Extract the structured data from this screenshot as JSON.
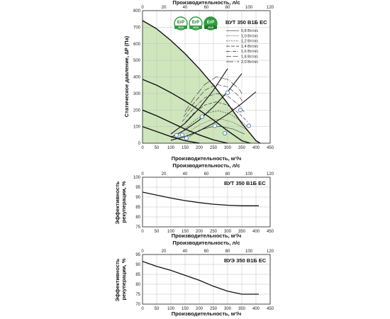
{
  "chart_data": [
    {
      "type": "line",
      "title": "ВУТ 350 В1Б ЕС",
      "xlabel": "Производительность, м³/ч",
      "x2label": "Производительность, л/с",
      "ylabel": "Статическое давление, ∆P (Па)",
      "xlim": [
        0,
        450
      ],
      "x2lim": [
        0,
        120
      ],
      "ylim": [
        0,
        800
      ],
      "x_ticks": [
        "0",
        "50",
        "100",
        "150",
        "200",
        "250",
        "300",
        "350",
        "400",
        "450"
      ],
      "x2_ticks": [
        "0",
        "20",
        "40",
        "60",
        "80",
        "100",
        "120"
      ],
      "y_ticks": [
        "0",
        "100",
        "200",
        "300",
        "400",
        "500",
        "600",
        "700",
        "800"
      ],
      "grid": true,
      "badges": [
        {
          "text": "ErP",
          "year": "2016"
        },
        {
          "text": "ErP",
          "year": "2018"
        },
        {
          "text": "ErP",
          "year": "2018"
        }
      ],
      "legend_position": "top-right",
      "legend": [
        {
          "label": "0,8 Вт/л/с",
          "dash": ""
        },
        {
          "label": "1,0 Вт/л/с",
          "dash": "1,1.2"
        },
        {
          "label": "1,2 Вт/л/с",
          "dash": "2,1.5"
        },
        {
          "label": "1,4 Вт/л/с",
          "dash": "5,2"
        },
        {
          "label": "1,6 Вт/л/с",
          "dash": "5,1.5,1,1.5"
        },
        {
          "label": "1,8 Вт/л/с",
          "dash": "7,2.5"
        },
        {
          "label": "2,0 Вт/л/с",
          "dash": "10,2,1,2"
        }
      ],
      "series": [
        {
          "role": "fan",
          "x": [
            0,
            50,
            100,
            150,
            200,
            250,
            300,
            350,
            400,
            415
          ],
          "y": [
            740,
            690,
            620,
            540,
            450,
            350,
            240,
            120,
            15,
            0
          ]
        },
        {
          "role": "fan",
          "x": [
            0,
            50,
            100,
            150,
            200,
            250,
            300,
            350,
            380
          ],
          "y": [
            385,
            350,
            305,
            255,
            200,
            140,
            75,
            15,
            0
          ]
        },
        {
          "role": "fan",
          "x": [
            0,
            50,
            100,
            150,
            200,
            250,
            300
          ],
          "y": [
            200,
            165,
            125,
            85,
            50,
            20,
            0
          ]
        },
        {
          "role": "fan",
          "x": [
            0,
            50,
            100,
            150,
            200
          ],
          "y": [
            100,
            70,
            40,
            15,
            0
          ]
        },
        {
          "role": "system",
          "x": [
            100,
            150,
            200,
            250,
            300,
            350,
            400
          ],
          "y": [
            18,
            40,
            75,
            120,
            175,
            240,
            310
          ]
        },
        {
          "role": "system",
          "x": [
            100,
            150,
            200,
            250,
            300,
            350
          ],
          "y": [
            35,
            80,
            140,
            220,
            310,
            420
          ]
        },
        {
          "role": "system",
          "x": [
            100,
            150,
            200,
            250,
            300
          ],
          "y": [
            55,
            120,
            210,
            320,
            450
          ]
        },
        {
          "role": "spfp",
          "dash": "",
          "x": [
            165,
            200,
            240,
            280,
            320,
            360
          ],
          "y": [
            40,
            78,
            98,
            100,
            85,
            55
          ]
        },
        {
          "role": "spfp",
          "dash": "1,1.2",
          "x": [
            155,
            200,
            240,
            280,
            320,
            360,
            380
          ],
          "y": [
            58,
            110,
            140,
            145,
            125,
            90,
            60
          ]
        },
        {
          "role": "spfp",
          "dash": "2,1.5",
          "x": [
            145,
            190,
            230,
            270,
            310,
            350,
            375
          ],
          "y": [
            80,
            145,
            185,
            195,
            175,
            130,
            90
          ]
        },
        {
          "role": "spfp",
          "dash": "5,2",
          "x": [
            140,
            180,
            220,
            260,
            300,
            340,
            370
          ],
          "y": [
            105,
            180,
            230,
            250,
            230,
            180,
            130
          ]
        },
        {
          "role": "spfp",
          "dash": "5,1.5,1,1.5",
          "x": [
            140,
            180,
            220,
            260,
            300,
            340,
            360
          ],
          "y": [
            130,
            210,
            275,
            300,
            285,
            230,
            185
          ]
        },
        {
          "role": "spfp",
          "dash": "7,2.5",
          "x": [
            145,
            180,
            220,
            260,
            300,
            340,
            355
          ],
          "y": [
            160,
            240,
            320,
            355,
            340,
            285,
            245
          ]
        },
        {
          "role": "spfp",
          "dash": "10,2,1,2",
          "x": [
            150,
            180,
            220,
            260,
            300,
            340,
            350
          ],
          "y": [
            190,
            270,
            355,
            400,
            385,
            330,
            300
          ]
        }
      ],
      "markers": [
        {
          "x": 300,
          "y": 305
        },
        {
          "x": 345,
          "y": 200
        },
        {
          "x": 375,
          "y": 105
        },
        {
          "x": 210,
          "y": 160
        },
        {
          "x": 255,
          "y": 105
        },
        {
          "x": 290,
          "y": 60
        },
        {
          "x": 120,
          "y": 48
        },
        {
          "x": 140,
          "y": 50
        },
        {
          "x": 155,
          "y": 30
        }
      ]
    },
    {
      "type": "line",
      "title": "ВУТ 350 В1Б ЕС",
      "xlabel": "Производительность, м³/ч",
      "x2label": "Производительность, л/с",
      "ylabel": "Эффективность рекуперации, %",
      "xlim": [
        0,
        450
      ],
      "x2lim": [
        0,
        120
      ],
      "ylim": [
        75,
        100
      ],
      "x_ticks": [
        "0",
        "50",
        "100",
        "150",
        "200",
        "250",
        "300",
        "350",
        "400",
        "450"
      ],
      "x2_ticks": [
        "0",
        "20",
        "40",
        "60",
        "80",
        "100",
        "120"
      ],
      "y_ticks": [
        "75",
        "80",
        "85",
        "90",
        "95",
        "100"
      ],
      "grid": true,
      "series": [
        {
          "x": [
            0,
            50,
            100,
            150,
            200,
            250,
            300,
            350,
            400,
            410
          ],
          "y": [
            92.5,
            91,
            89.5,
            88.2,
            87.2,
            86.4,
            85.9,
            85.6,
            85.6,
            85.6
          ]
        }
      ]
    },
    {
      "type": "line",
      "title": "ВУЭ 350 В1Б ЕС",
      "xlabel": "Производительность, м³/ч",
      "x2label": "Производительность, л/с",
      "ylabel": "Эффективность рекуперации, %",
      "xlim": [
        0,
        450
      ],
      "x2lim": [
        0,
        120
      ],
      "ylim": [
        70,
        95
      ],
      "x_ticks": [
        "0",
        "50",
        "100",
        "150",
        "200",
        "250",
        "300",
        "350",
        "400",
        "450"
      ],
      "x2_ticks": [
        "0",
        "20",
        "40",
        "60",
        "80",
        "100",
        "120"
      ],
      "y_ticks": [
        "70",
        "75",
        "80",
        "85",
        "90",
        "95"
      ],
      "grid": true,
      "series": [
        {
          "x": [
            0,
            50,
            100,
            150,
            200,
            250,
            300,
            350,
            400,
            410
          ],
          "y": [
            91.5,
            89,
            87,
            84.5,
            82,
            79,
            76.5,
            75,
            75,
            75
          ]
        }
      ]
    }
  ]
}
